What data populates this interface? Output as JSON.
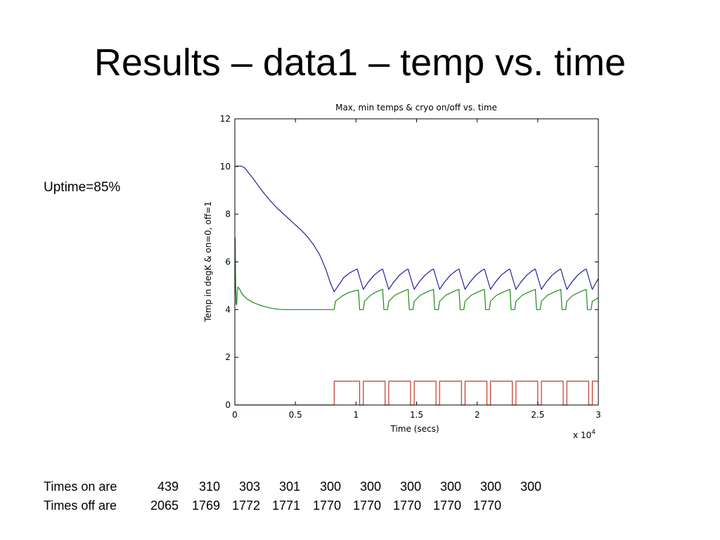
{
  "slide": {
    "title": "Results – data1 – temp vs. time",
    "uptime": "Uptime=85%",
    "times_on_label": "Times on are",
    "times_on": [
      "439",
      "310",
      "303",
      "301",
      "300",
      "300",
      "300",
      "300",
      "300",
      "300"
    ],
    "times_off_label": "Times off are",
    "times_off": [
      "2065",
      "1769",
      "1772",
      "1771",
      "1770",
      "1770",
      "1770",
      "1770",
      "1770"
    ]
  },
  "chart_data": {
    "type": "line",
    "title": "Max, min temps & cryo on/off vs. time",
    "xlabel": "Time (secs)",
    "ylabel": "Temp in degK & on=0, off=1",
    "x_multiplier_label": "x 10",
    "x_multiplier_exponent": "4",
    "xlim": [
      0,
      3
    ],
    "ylim": [
      0,
      12
    ],
    "xticks": [
      0,
      0.5,
      1,
      1.5,
      2,
      2.5,
      3
    ],
    "xtick_labels": [
      "0",
      "0.5",
      "1",
      "1.5",
      "2",
      "2.5",
      "3"
    ],
    "yticks": [
      0,
      2,
      4,
      6,
      8,
      10,
      12
    ],
    "ytick_labels": [
      "0",
      "2",
      "4",
      "6",
      "8",
      "10",
      "12"
    ],
    "grid": false,
    "colors": {
      "max": "#1f1fa0",
      "min": "#1a8a1a",
      "onoff": "#c0392b"
    },
    "series": [
      {
        "key": "max",
        "points": [
          [
            0,
            10.0
          ],
          [
            0.02,
            10.02
          ],
          [
            0.05,
            10.02
          ],
          [
            0.08,
            9.95
          ],
          [
            0.1,
            9.82
          ],
          [
            0.15,
            9.5
          ],
          [
            0.2,
            9.15
          ],
          [
            0.25,
            8.82
          ],
          [
            0.3,
            8.52
          ],
          [
            0.35,
            8.25
          ],
          [
            0.4,
            8.02
          ],
          [
            0.45,
            7.78
          ],
          [
            0.5,
            7.55
          ],
          [
            0.55,
            7.32
          ],
          [
            0.6,
            7.05
          ],
          [
            0.65,
            6.72
          ],
          [
            0.7,
            6.3
          ],
          [
            0.75,
            5.7
          ],
          [
            0.79,
            5.1
          ],
          [
            0.82,
            4.75
          ],
          [
            0.86,
            5.05
          ],
          [
            0.9,
            5.35
          ],
          [
            0.95,
            5.55
          ],
          [
            1.0,
            5.68
          ],
          [
            1.01,
            5.7
          ],
          [
            1.03,
            5.35
          ],
          [
            1.06,
            4.85
          ],
          [
            1.1,
            5.15
          ],
          [
            1.15,
            5.45
          ],
          [
            1.2,
            5.65
          ],
          [
            1.22,
            5.7
          ],
          [
            1.24,
            5.35
          ],
          [
            1.27,
            4.85
          ],
          [
            1.31,
            5.15
          ],
          [
            1.36,
            5.45
          ],
          [
            1.41,
            5.65
          ],
          [
            1.43,
            5.7
          ],
          [
            1.45,
            5.35
          ],
          [
            1.48,
            4.85
          ],
          [
            1.52,
            5.15
          ],
          [
            1.57,
            5.45
          ],
          [
            1.62,
            5.65
          ],
          [
            1.64,
            5.7
          ],
          [
            1.66,
            5.35
          ],
          [
            1.69,
            4.85
          ],
          [
            1.73,
            5.15
          ],
          [
            1.78,
            5.45
          ],
          [
            1.83,
            5.65
          ],
          [
            1.85,
            5.7
          ],
          [
            1.87,
            5.35
          ],
          [
            1.9,
            4.85
          ],
          [
            1.94,
            5.15
          ],
          [
            1.99,
            5.45
          ],
          [
            2.04,
            5.65
          ],
          [
            2.06,
            5.7
          ],
          [
            2.08,
            5.35
          ],
          [
            2.11,
            4.85
          ],
          [
            2.15,
            5.15
          ],
          [
            2.2,
            5.45
          ],
          [
            2.25,
            5.65
          ],
          [
            2.27,
            5.7
          ],
          [
            2.29,
            5.35
          ],
          [
            2.32,
            4.85
          ],
          [
            2.36,
            5.15
          ],
          [
            2.41,
            5.45
          ],
          [
            2.46,
            5.65
          ],
          [
            2.48,
            5.7
          ],
          [
            2.5,
            5.35
          ],
          [
            2.53,
            4.85
          ],
          [
            2.57,
            5.15
          ],
          [
            2.62,
            5.45
          ],
          [
            2.67,
            5.65
          ],
          [
            2.69,
            5.7
          ],
          [
            2.71,
            5.35
          ],
          [
            2.74,
            4.85
          ],
          [
            2.78,
            5.15
          ],
          [
            2.83,
            5.45
          ],
          [
            2.88,
            5.65
          ],
          [
            2.9,
            5.7
          ],
          [
            2.92,
            5.35
          ],
          [
            2.95,
            4.85
          ],
          [
            3.0,
            5.3
          ]
        ]
      },
      {
        "key": "min",
        "points": [
          [
            0,
            4.6
          ],
          [
            0.003,
            7.0
          ],
          [
            0.006,
            5.5
          ],
          [
            0.01,
            4.25
          ],
          [
            0.015,
            4.2
          ],
          [
            0.02,
            4.75
          ],
          [
            0.025,
            4.95
          ],
          [
            0.04,
            4.85
          ],
          [
            0.06,
            4.65
          ],
          [
            0.1,
            4.45
          ],
          [
            0.15,
            4.3
          ],
          [
            0.2,
            4.2
          ],
          [
            0.25,
            4.12
          ],
          [
            0.3,
            4.06
          ],
          [
            0.35,
            4.02
          ],
          [
            0.4,
            4.0
          ],
          [
            0.5,
            4.0
          ],
          [
            0.6,
            4.0
          ],
          [
            0.7,
            4.0
          ],
          [
            0.82,
            4.0
          ],
          [
            0.83,
            4.35
          ],
          [
            0.88,
            4.55
          ],
          [
            0.93,
            4.7
          ],
          [
            0.98,
            4.78
          ],
          [
            1.0,
            4.8
          ],
          [
            1.02,
            4.82
          ],
          [
            1.03,
            4.0
          ],
          [
            1.06,
            4.0
          ],
          [
            1.07,
            4.35
          ],
          [
            1.12,
            4.6
          ],
          [
            1.17,
            4.75
          ],
          [
            1.22,
            4.85
          ],
          [
            1.23,
            4.0
          ],
          [
            1.26,
            4.0
          ],
          [
            1.27,
            4.35
          ],
          [
            1.32,
            4.6
          ],
          [
            1.38,
            4.75
          ],
          [
            1.43,
            4.85
          ],
          [
            1.44,
            4.0
          ],
          [
            1.47,
            4.0
          ],
          [
            1.48,
            4.35
          ],
          [
            1.53,
            4.6
          ],
          [
            1.59,
            4.75
          ],
          [
            1.64,
            4.85
          ],
          [
            1.65,
            4.0
          ],
          [
            1.68,
            4.0
          ],
          [
            1.69,
            4.35
          ],
          [
            1.74,
            4.6
          ],
          [
            1.8,
            4.75
          ],
          [
            1.85,
            4.85
          ],
          [
            1.86,
            4.0
          ],
          [
            1.89,
            4.0
          ],
          [
            1.9,
            4.35
          ],
          [
            1.95,
            4.6
          ],
          [
            2.01,
            4.75
          ],
          [
            2.06,
            4.85
          ],
          [
            2.07,
            4.0
          ],
          [
            2.1,
            4.0
          ],
          [
            2.11,
            4.35
          ],
          [
            2.16,
            4.6
          ],
          [
            2.22,
            4.75
          ],
          [
            2.27,
            4.85
          ],
          [
            2.28,
            4.0
          ],
          [
            2.31,
            4.0
          ],
          [
            2.32,
            4.35
          ],
          [
            2.37,
            4.6
          ],
          [
            2.43,
            4.75
          ],
          [
            2.48,
            4.85
          ],
          [
            2.49,
            4.0
          ],
          [
            2.52,
            4.0
          ],
          [
            2.53,
            4.35
          ],
          [
            2.58,
            4.6
          ],
          [
            2.64,
            4.75
          ],
          [
            2.69,
            4.85
          ],
          [
            2.7,
            4.0
          ],
          [
            2.73,
            4.0
          ],
          [
            2.74,
            4.35
          ],
          [
            2.79,
            4.6
          ],
          [
            2.85,
            4.75
          ],
          [
            2.9,
            4.85
          ],
          [
            2.91,
            4.0
          ],
          [
            2.94,
            4.0
          ],
          [
            2.95,
            4.35
          ],
          [
            3.0,
            4.5
          ]
        ]
      },
      {
        "key": "onoff",
        "points": [
          [
            0,
            0
          ],
          [
            0.82,
            0
          ],
          [
            0.82,
            1
          ],
          [
            1.03,
            1
          ],
          [
            1.03,
            0
          ],
          [
            1.06,
            0
          ],
          [
            1.06,
            1
          ],
          [
            1.24,
            1
          ],
          [
            1.24,
            0
          ],
          [
            1.27,
            0
          ],
          [
            1.27,
            1
          ],
          [
            1.45,
            1
          ],
          [
            1.45,
            0
          ],
          [
            1.48,
            0
          ],
          [
            1.48,
            1
          ],
          [
            1.66,
            1
          ],
          [
            1.66,
            0
          ],
          [
            1.69,
            0
          ],
          [
            1.69,
            1
          ],
          [
            1.87,
            1
          ],
          [
            1.87,
            0
          ],
          [
            1.9,
            0
          ],
          [
            1.9,
            1
          ],
          [
            2.08,
            1
          ],
          [
            2.08,
            0
          ],
          [
            2.11,
            0
          ],
          [
            2.11,
            1
          ],
          [
            2.29,
            1
          ],
          [
            2.29,
            0
          ],
          [
            2.32,
            0
          ],
          [
            2.32,
            1
          ],
          [
            2.5,
            1
          ],
          [
            2.5,
            0
          ],
          [
            2.53,
            0
          ],
          [
            2.53,
            1
          ],
          [
            2.71,
            1
          ],
          [
            2.71,
            0
          ],
          [
            2.74,
            0
          ],
          [
            2.74,
            1
          ],
          [
            2.92,
            1
          ],
          [
            2.92,
            0
          ],
          [
            2.95,
            0
          ],
          [
            2.95,
            1
          ],
          [
            3.0,
            1
          ]
        ]
      }
    ]
  }
}
